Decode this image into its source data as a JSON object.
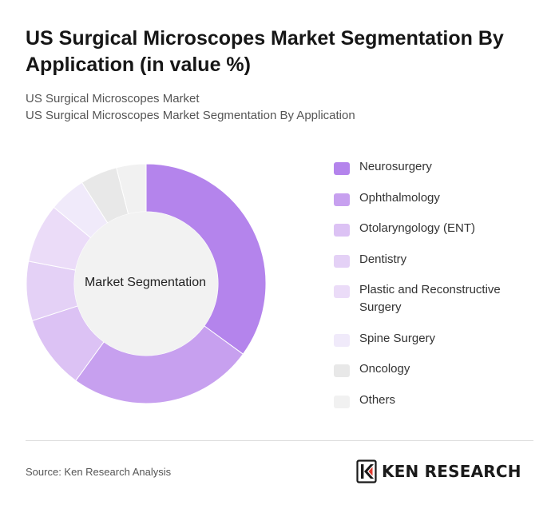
{
  "title": "US Surgical Microscopes Market Segmentation By Application (in value %)",
  "subtitle_lines": [
    "US Surgical Microscopes Market",
    "US Surgical Microscopes Market Segmentation By Application"
  ],
  "source": "Source: Ken Research Analysis",
  "brand": {
    "name": "KEN RESEARCH",
    "logo_icon": "ken-research-k-logo"
  },
  "chart_data": {
    "type": "pie",
    "style": "donut",
    "center_label": "Market Segmentation",
    "legend_placement": "right",
    "categories": [
      "Neurosurgery",
      "Ophthalmology",
      "Otolaryngology (ENT)",
      "Dentistry",
      "Plastic and Reconstructive Surgery",
      "Spine Surgery",
      "Oncology",
      "Others"
    ],
    "values": [
      35,
      25,
      10,
      8,
      8,
      5,
      5,
      4
    ],
    "colors": [
      "#b484ec",
      "#c7a0ef",
      "#dcc2f4",
      "#e4d1f6",
      "#ebdcf8",
      "#f0eafa",
      "#e8e8e8",
      "#f1f1f1"
    ],
    "unit": "%"
  }
}
